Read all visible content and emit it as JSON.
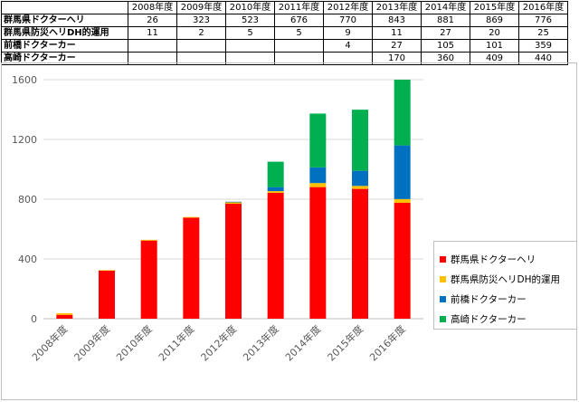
{
  "chart_data": {
    "type": "bar",
    "stacked": true,
    "categories": [
      "2008年度",
      "2009年度",
      "2010年度",
      "2011年度",
      "2012年度",
      "2013年度",
      "2014年度",
      "2015年度",
      "2016年度"
    ],
    "series": [
      {
        "name": "群馬県ドクターヘリ",
        "color": "#ff0000",
        "values": [
          26,
          323,
          523,
          676,
          770,
          843,
          881,
          869,
          776
        ],
        "labels": [
          "26",
          "323",
          "523",
          "676",
          "770",
          "843",
          "881",
          "869",
          "776"
        ]
      },
      {
        "name": "群馬県防災ヘリDH的運用",
        "color": "#ffc000",
        "values": [
          11,
          2,
          5,
          5,
          9,
          11,
          27,
          20,
          25
        ],
        "labels": [
          "11",
          "2",
          "5",
          "5",
          "9",
          "11",
          "27",
          "20",
          "25"
        ]
      },
      {
        "name": "前橋ドクターカー",
        "color": "#0070c0",
        "values": [
          0,
          0,
          0,
          0,
          4,
          27,
          105,
          101,
          359
        ],
        "labels": [
          "",
          "",
          "",
          "",
          "4",
          "27",
          "105",
          "101",
          "359"
        ]
      },
      {
        "name": "高崎ドクターカー",
        "color": "#00b050",
        "values": [
          0,
          0,
          0,
          0,
          0,
          170,
          360,
          409,
          440
        ],
        "labels": [
          "",
          "",
          "",
          "",
          "",
          "170",
          "360",
          "409",
          "440"
        ]
      }
    ],
    "ylim": [
      0,
      1600
    ],
    "yticks": [
      "0",
      "400",
      "800",
      "1200",
      "1600"
    ],
    "grid": true,
    "legend_position": "right",
    "title": "",
    "xlabel": "",
    "ylabel": ""
  }
}
